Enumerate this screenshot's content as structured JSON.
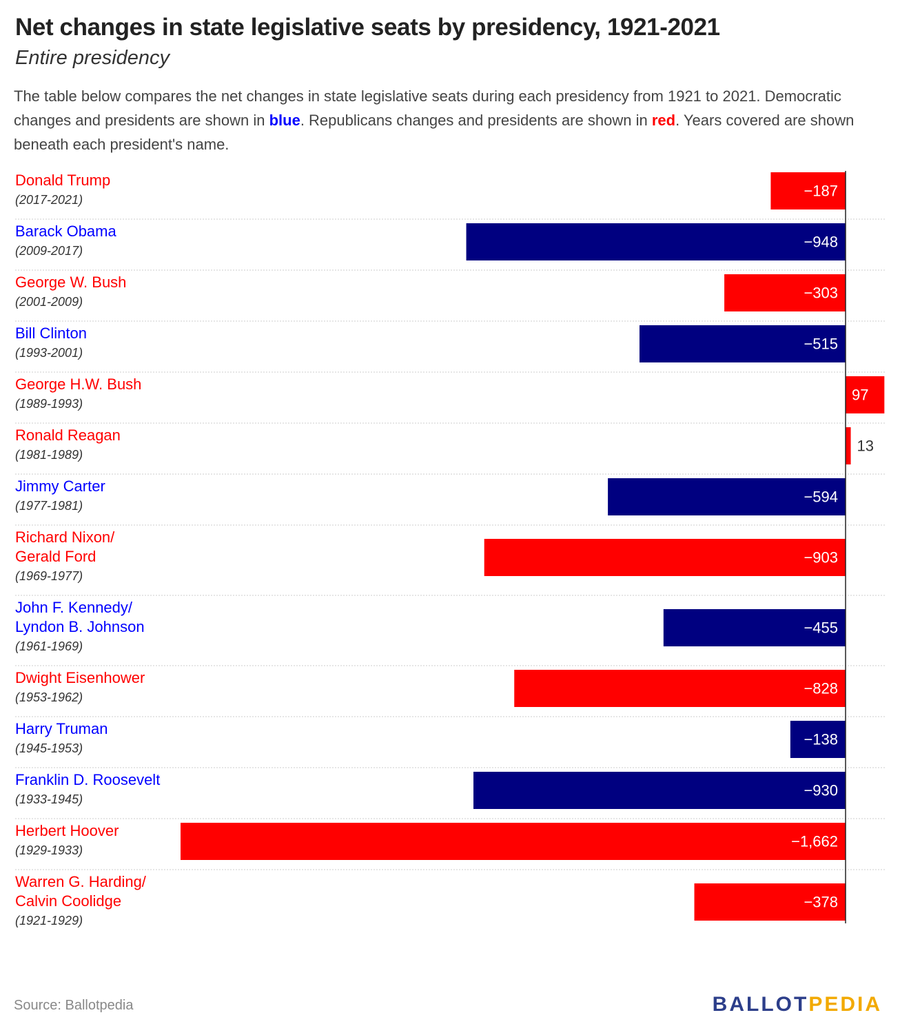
{
  "header": {
    "title": "Net changes in state legislative seats by presidency, 1921-2021",
    "subtitle": "Entire presidency"
  },
  "description": {
    "part1": "The table below compares the net changes in state legislative seats during each presidency from 1921 to 2021. Democratic changes and presidents are shown in ",
    "blue_word": "blue",
    "part2": ". Republicans changes and presidents are shown in ",
    "red_word": "red",
    "part3": ". Years covered are shown beneath each president's name."
  },
  "colors": {
    "democratic_label": "#0000ff",
    "democratic_bar": "#000080",
    "republican": "#ff0000"
  },
  "chart_data": {
    "type": "bar",
    "orientation": "horizontal",
    "categories": [
      "Donald Trump",
      "Barack Obama",
      "George W. Bush",
      "Bill Clinton",
      "George H.W. Bush",
      "Ronald Reagan",
      "Jimmy Carter",
      "Richard Nixon/ Gerald Ford",
      "John F. Kennedy/ Lyndon B. Johnson",
      "Dwight Eisenhower",
      "Harry Truman",
      "Franklin D. Roosevelt",
      "Herbert Hoover",
      "Warren G. Harding/ Calvin Coolidge"
    ],
    "rows": [
      {
        "name_lines": [
          "Donald Trump"
        ],
        "years": "(2017-2021)",
        "party": "R",
        "value": -187,
        "label": "−187"
      },
      {
        "name_lines": [
          "Barack Obama"
        ],
        "years": "(2009-2017)",
        "party": "D",
        "value": -948,
        "label": "−948"
      },
      {
        "name_lines": [
          "George W. Bush"
        ],
        "years": "(2001-2009)",
        "party": "R",
        "value": -303,
        "label": "−303"
      },
      {
        "name_lines": [
          "Bill Clinton"
        ],
        "years": "(1993-2001)",
        "party": "D",
        "value": -515,
        "label": "−515"
      },
      {
        "name_lines": [
          "George H.W. Bush"
        ],
        "years": "(1989-1993)",
        "party": "R",
        "value": 97,
        "label": "97"
      },
      {
        "name_lines": [
          "Ronald Reagan"
        ],
        "years": "(1981-1989)",
        "party": "R",
        "value": 13,
        "label": "13"
      },
      {
        "name_lines": [
          "Jimmy Carter"
        ],
        "years": "(1977-1981)",
        "party": "D",
        "value": -594,
        "label": "−594"
      },
      {
        "name_lines": [
          "Richard Nixon/",
          "Gerald Ford"
        ],
        "years": "(1969-1977)",
        "party": "R",
        "value": -903,
        "label": "−903"
      },
      {
        "name_lines": [
          "John F. Kennedy/",
          "Lyndon B. Johnson"
        ],
        "years": "(1961-1969)",
        "party": "D",
        "value": -455,
        "label": "−455"
      },
      {
        "name_lines": [
          "Dwight Eisenhower"
        ],
        "years": "(1953-1962)",
        "party": "R",
        "value": -828,
        "label": "−828"
      },
      {
        "name_lines": [
          "Harry Truman"
        ],
        "years": "(1945-1953)",
        "party": "D",
        "value": -138,
        "label": "−138"
      },
      {
        "name_lines": [
          "Franklin D. Roosevelt"
        ],
        "years": "(1933-1945)",
        "party": "D",
        "value": -930,
        "label": "−930"
      },
      {
        "name_lines": [
          "Herbert Hoover"
        ],
        "years": "(1929-1933)",
        "party": "R",
        "value": -1662,
        "label": "−1,662"
      },
      {
        "name_lines": [
          "Warren G. Harding/",
          "Calvin Coolidge"
        ],
        "years": "(1921-1929)",
        "party": "R",
        "value": -378,
        "label": "−378"
      }
    ],
    "xlim": [
      -1662,
      97
    ],
    "grid": false,
    "legend": "none"
  },
  "footer": {
    "source": "Source: Ballotpedia",
    "brand_part1": "BALLOT",
    "brand_part2": "PEDIA"
  }
}
